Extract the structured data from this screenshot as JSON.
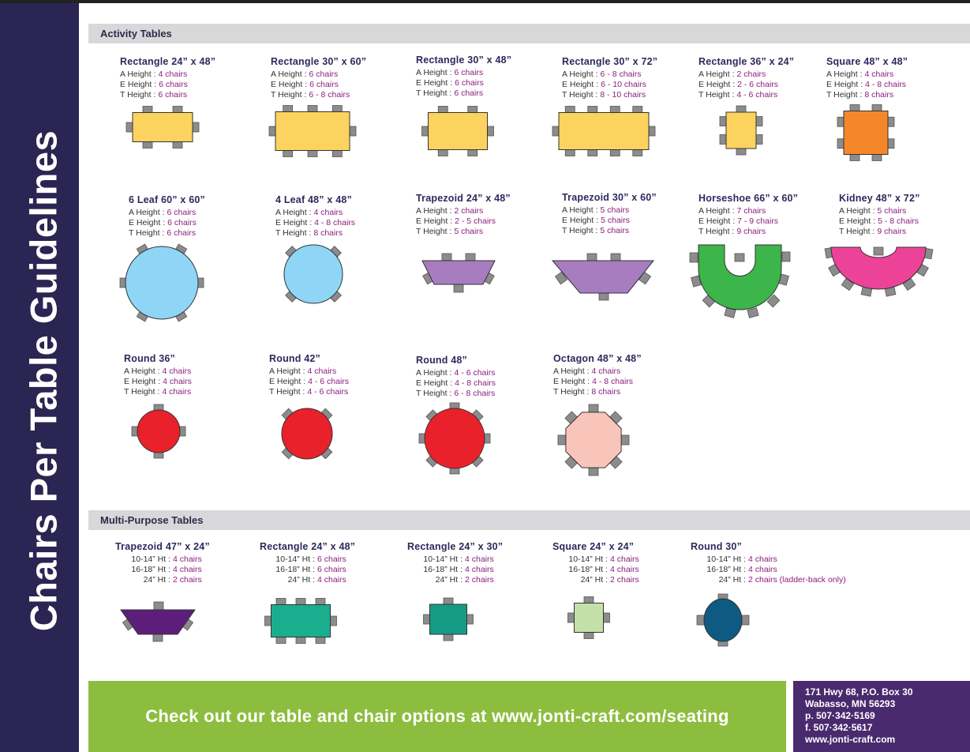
{
  "sidebar_title": "Chairs Per Table Guidelines",
  "sections": [
    {
      "title": "Activity Tables",
      "items": [
        {
          "name": "Rectangle 24” x 48”",
          "rows": [
            [
              "A Height :",
              "4 chairs"
            ],
            [
              "E Height :",
              "6 chairs"
            ],
            [
              "T Height :",
              "6 chairs"
            ]
          ]
        },
        {
          "name": "Rectangle 30” x 60”",
          "rows": [
            [
              "A Height :",
              "6 chairs"
            ],
            [
              "E Height :",
              "6 chairs"
            ],
            [
              "T Height :",
              "6 - 8 chairs"
            ]
          ]
        },
        {
          "name": "Rectangle 30” x 48”",
          "rows": [
            [
              "A Height :",
              "6 chairs"
            ],
            [
              "E Height :",
              "6 chairs"
            ],
            [
              "T Height :",
              "6 chairs"
            ]
          ]
        },
        {
          "name": "Rectangle 30” x 72”",
          "rows": [
            [
              "A Height :",
              "6 - 8 chairs"
            ],
            [
              "E Height :",
              "6 - 10 chairs"
            ],
            [
              "T Height :",
              "8 - 10 chairs"
            ]
          ]
        },
        {
          "name": "Rectangle 36” x 24”",
          "rows": [
            [
              "A Height :",
              "2 chairs"
            ],
            [
              "E Height :",
              "2 - 6 chairs"
            ],
            [
              "T Height :",
              "4 - 6 chairs"
            ]
          ]
        },
        {
          "name": "Square 48” x 48”",
          "rows": [
            [
              "A Height :",
              "4 chairs"
            ],
            [
              "E Height :",
              "4 - 8 chairs"
            ],
            [
              "T Height :",
              "8 chairs"
            ]
          ]
        },
        {
          "name": "6 Leaf 60” x 60”",
          "rows": [
            [
              "A Height :",
              "6 chairs"
            ],
            [
              "E Height :",
              "6 chairs"
            ],
            [
              "T Height :",
              "6 chairs"
            ]
          ]
        },
        {
          "name": "4 Leaf 48” x 48”",
          "rows": [
            [
              "A Height :",
              "4 chairs"
            ],
            [
              "E Height :",
              "4 - 8 chairs"
            ],
            [
              "T Height :",
              "8 chairs"
            ]
          ]
        },
        {
          "name": "Trapezoid 24” x 48”",
          "rows": [
            [
              "A Height :",
              "2 chairs"
            ],
            [
              "E Height :",
              "2 - 5 chairs"
            ],
            [
              "T Height :",
              "5 chairs"
            ]
          ]
        },
        {
          "name": "Trapezoid 30” x 60”",
          "rows": [
            [
              "A Height :",
              "5 chairs"
            ],
            [
              "E Height :",
              "5 chairs"
            ],
            [
              "T Height :",
              "5 chairs"
            ]
          ]
        },
        {
          "name": "Horseshoe 66” x 60”",
          "rows": [
            [
              "A Height :",
              "7 chairs"
            ],
            [
              "E Height :",
              "7 - 9 chairs"
            ],
            [
              "T Height :",
              "9 chairs"
            ]
          ]
        },
        {
          "name": "Kidney 48” x 72”",
          "rows": [
            [
              "A Height :",
              "5 chairs"
            ],
            [
              "E Height :",
              "5 - 8 chairs"
            ],
            [
              "T Height :",
              "9 chairs"
            ]
          ]
        },
        {
          "name": "Round 36”",
          "rows": [
            [
              "A Height :",
              "4 chairs"
            ],
            [
              "E Height :",
              "4 chairs"
            ],
            [
              "T Height :",
              "4 chairs"
            ]
          ]
        },
        {
          "name": "Round 42”",
          "rows": [
            [
              "A Height :",
              "4 chairs"
            ],
            [
              "E Height :",
              "4 - 6 chairs"
            ],
            [
              "T Height :",
              "4 - 6 chairs"
            ]
          ]
        },
        {
          "name": "Round 48”",
          "rows": [
            [
              "A Height :",
              "4 - 6 chairs"
            ],
            [
              "E Height :",
              "4 - 8 chairs"
            ],
            [
              "T Height :",
              "6 - 8 chairs"
            ]
          ]
        },
        {
          "name": "Octagon 48” x 48”",
          "rows": [
            [
              "A Height :",
              "4 chairs"
            ],
            [
              "E Height :",
              "4 - 8 chairs"
            ],
            [
              "T Height :",
              "8 chairs"
            ]
          ]
        }
      ]
    },
    {
      "title": "Multi-Purpose Tables",
      "items": [
        {
          "name": "Trapezoid 47” x 24”",
          "rows": [
            [
              "10-14” Ht :",
              "4 chairs"
            ],
            [
              "16-18” Ht :",
              "4 chairs"
            ],
            [
              "24” Ht :",
              "2 chairs"
            ]
          ]
        },
        {
          "name": "Rectangle 24” x 48”",
          "rows": [
            [
              "10-14” Ht :",
              "6 chairs"
            ],
            [
              "16-18” Ht :",
              "6 chairs"
            ],
            [
              "24” Ht :",
              "4 chairs"
            ]
          ]
        },
        {
          "name": "Rectangle 24” x 30”",
          "rows": [
            [
              "10-14” Ht :",
              "4 chairs"
            ],
            [
              "16-18” Ht :",
              "4 chairs"
            ],
            [
              "24” Ht :",
              "2 chairs"
            ]
          ]
        },
        {
          "name": "Square 24” x 24”",
          "rows": [
            [
              "10-14” Ht :",
              "4 chairs"
            ],
            [
              "16-18” Ht :",
              "4 chairs"
            ],
            [
              "24” Ht :",
              "2 chairs"
            ]
          ]
        },
        {
          "name": "Round 30”",
          "rows": [
            [
              "10-14” Ht :",
              "4 chairs"
            ],
            [
              "16-18” Ht :",
              "4 chairs"
            ],
            [
              "24” Ht :",
              "2 chairs (ladder-back only)"
            ]
          ]
        }
      ]
    }
  ],
  "footer": {
    "banner": "Check out our table and chair options at www.jonti-craft.com/seating",
    "address": [
      "171 Hwy 68, P.O. Box 30",
      "Wabasso, MN 56293",
      "p. 507·342·5169",
      "f. 507·342·5617",
      "www.jonti-craft.com"
    ]
  }
}
